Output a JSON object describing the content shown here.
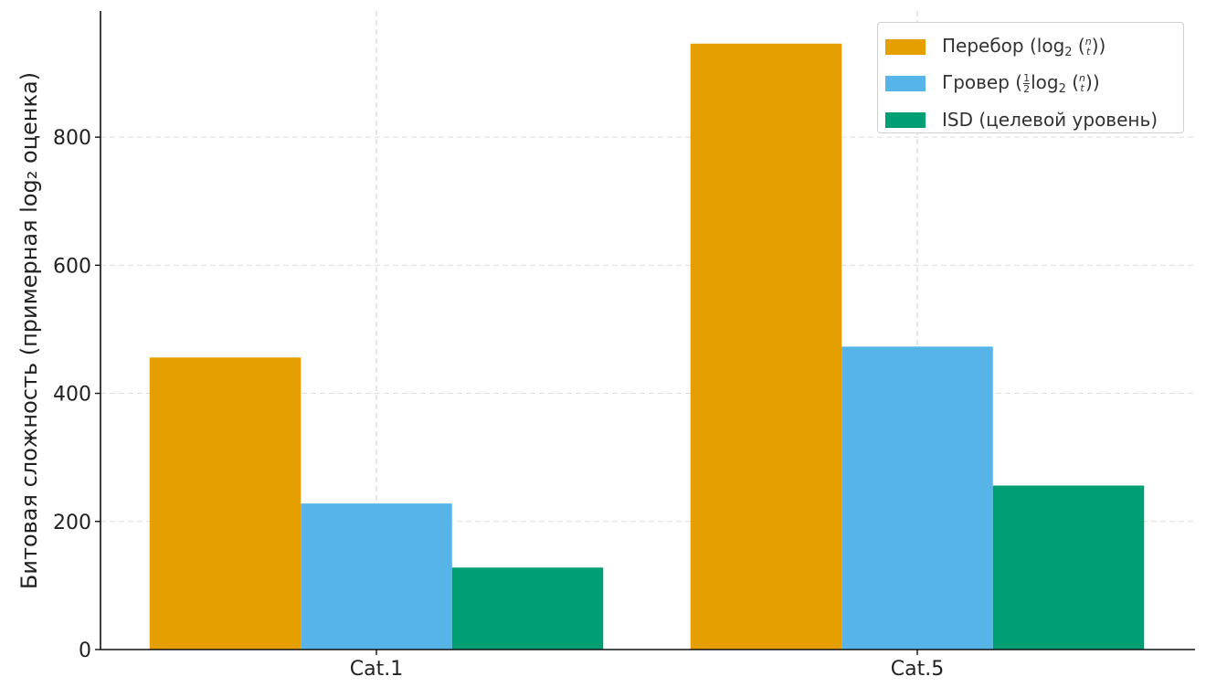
{
  "chart_data": {
    "type": "bar",
    "categories": [
      "Cat.1",
      "Cat.5"
    ],
    "series": [
      {
        "name": "Перебор (log₂ (n t))",
        "color": "#E69F00",
        "values": [
          456,
          946
        ]
      },
      {
        "name": "Гровер (½log₂ (n t))",
        "color": "#56B4E9",
        "values": [
          228,
          473
        ]
      },
      {
        "name": "ISD (целевой уровень)",
        "color": "#009E73",
        "values": [
          128,
          256
        ]
      }
    ],
    "xlabel": "",
    "ylabel": "Битовая сложность (примерная log₂ оценка)",
    "ylim": [
      0,
      997
    ],
    "yticks": [
      0,
      200,
      400,
      600,
      800
    ],
    "grid": true,
    "legend_position": "top-right"
  },
  "legend": {
    "brute": {
      "prefix": "Перебор (log",
      "sub": "2",
      "binom_top": "n",
      "binom_bottom": "t",
      "suffix": "))"
    },
    "grover": {
      "prefix": "Гровер (",
      "frac_num": "1",
      "frac_den": "2",
      "mid": "log",
      "sub": "2",
      "binom_top": "n",
      "binom_bottom": "t",
      "suffix": "))"
    },
    "isd": {
      "label": "ISD (целевой уровень)"
    }
  }
}
